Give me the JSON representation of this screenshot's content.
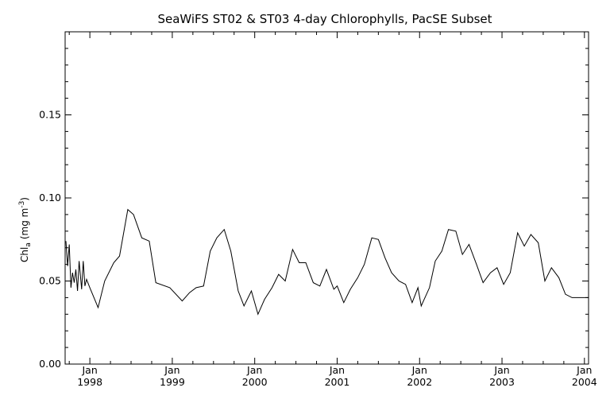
{
  "chart_data": {
    "type": "line",
    "title": "SeaWiFS ST02 & ST03 4-day Chlorophylls, PacSE Subset",
    "ylabel_main": "Chl",
    "ylabel_sub": "a",
    "ylabel_units": "(mg m",
    "ylabel_exp": "-3",
    "ylabel_close": ")",
    "xlim": [
      1997.7,
      2004.05
    ],
    "ylim": [
      0.0,
      0.2
    ],
    "yticks": [
      {
        "value": 0.0,
        "label": "0.00"
      },
      {
        "value": 0.05,
        "label": "0.05"
      },
      {
        "value": 0.1,
        "label": "0.10"
      },
      {
        "value": 0.15,
        "label": "0.15"
      }
    ],
    "xticks": [
      {
        "value": 1998.0,
        "month": "Jan",
        "year": "1998"
      },
      {
        "value": 1999.0,
        "month": "Jan",
        "year": "1999"
      },
      {
        "value": 2000.0,
        "month": "Jan",
        "year": "2000"
      },
      {
        "value": 2001.0,
        "month": "Jan",
        "year": "2001"
      },
      {
        "value": 2002.0,
        "month": "Jan",
        "year": "2002"
      },
      {
        "value": 2003.0,
        "month": "Jan",
        "year": "2003"
      },
      {
        "value": 2004.0,
        "month": "Jan",
        "year": "2004"
      }
    ],
    "grid": false,
    "series": [
      {
        "x": [
          1997.71,
          1997.73,
          1997.75,
          1997.77,
          1997.79,
          1997.81,
          1997.83,
          1997.85,
          1997.87,
          1997.9,
          1997.92,
          1997.94,
          1997.96,
          1998.0,
          1998.1,
          1998.18,
          1998.29,
          1998.36,
          1998.46,
          1998.53,
          1998.63,
          1998.72,
          1998.8,
          1998.97,
          1999.12,
          1999.21,
          1999.29,
          1999.38,
          1999.46,
          1999.54,
          1999.63,
          1999.71,
          1999.8,
          1999.87,
          1999.96,
          2000.04,
          2000.12,
          2000.21,
          2000.29,
          2000.37,
          2000.46,
          2000.54,
          2000.62,
          2000.71,
          2000.79,
          2000.87,
          2000.96,
          2001.0,
          2001.08,
          2001.16,
          2001.25,
          2001.33,
          2001.42,
          2001.5,
          2001.58,
          2001.66,
          2001.75,
          2001.83,
          2001.91,
          2001.98,
          2002.02,
          2002.12,
          2002.19,
          2002.27,
          2002.35,
          2002.44,
          2002.52,
          2002.6,
          2002.69,
          2002.77,
          2002.86,
          2002.94,
          2003.02,
          2003.1,
          2003.19,
          2003.27,
          2003.35,
          2003.44,
          2003.52,
          2003.6,
          2003.69,
          2003.77,
          2003.85,
          2003.94,
          2004.03,
          2004.07
        ],
        "y": [
          0.074,
          0.059,
          0.072,
          0.046,
          0.055,
          0.049,
          0.057,
          0.044,
          0.062,
          0.045,
          0.062,
          0.047,
          0.051,
          0.046,
          0.034,
          0.05,
          0.061,
          0.065,
          0.093,
          0.09,
          0.076,
          0.074,
          0.049,
          0.046,
          0.038,
          0.043,
          0.046,
          0.047,
          0.068,
          0.076,
          0.081,
          0.068,
          0.044,
          0.035,
          0.044,
          0.03,
          0.039,
          0.046,
          0.054,
          0.05,
          0.069,
          0.061,
          0.061,
          0.049,
          0.047,
          0.057,
          0.045,
          0.047,
          0.037,
          0.045,
          0.052,
          0.06,
          0.076,
          0.075,
          0.064,
          0.055,
          0.05,
          0.048,
          0.037,
          0.046,
          0.035,
          0.046,
          0.062,
          0.068,
          0.081,
          0.08,
          0.066,
          0.072,
          0.06,
          0.049,
          0.055,
          0.058,
          0.048,
          0.055,
          0.079,
          0.071,
          0.078,
          0.073,
          0.05,
          0.058,
          0.052,
          0.042,
          0.04,
          0.04,
          0.04,
          0.04
        ]
      }
    ]
  }
}
